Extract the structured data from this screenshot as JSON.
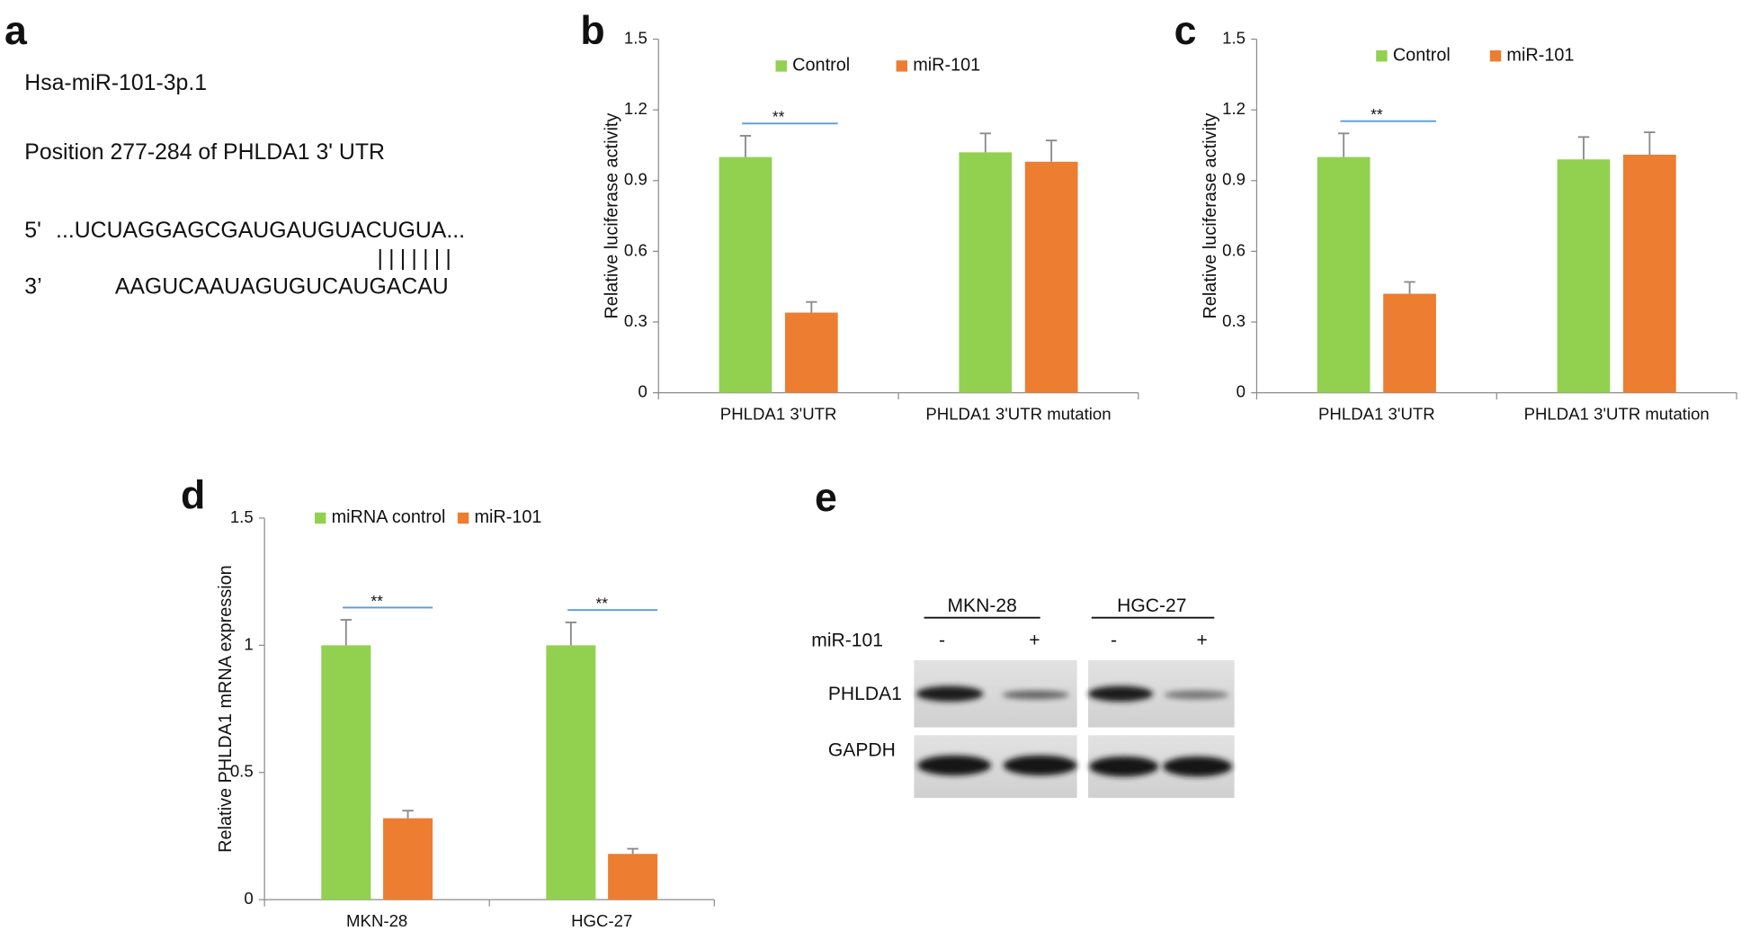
{
  "panel_a": {
    "label": "a",
    "lines": [
      "Hsa-miR-101-3p.1",
      "Position 277-284 of PHLDA1 3' UTR"
    ],
    "mrna": {
      "end": "5'",
      "sequence": "...UCUAGGAGCGAUGAUGUACUGUA..."
    },
    "pairing": "|||||||",
    "mirna": {
      "end": "3’",
      "sequence": "AAGUCAAUAGUGUCAUGACAU"
    }
  },
  "chart_data": [
    {
      "type": "bar",
      "panel_label": "b",
      "ylabel": "Relative luciferase activity",
      "categories": [
        "PHLDA1 3'UTR",
        "PHLDA1 3'UTR mutation"
      ],
      "series": [
        {
          "name": "Control",
          "color": "#92d050",
          "values": [
            1.0,
            1.02
          ],
          "errors": [
            0.09,
            0.08
          ]
        },
        {
          "name": "miR-101",
          "color": "#ed7d31",
          "values": [
            0.34,
            0.98
          ],
          "errors": [
            0.045,
            0.09
          ]
        }
      ],
      "ylim": [
        0,
        1.5
      ],
      "yticks": [
        0,
        0.3,
        0.6,
        0.9,
        1.2,
        1.5
      ],
      "legend": "top",
      "significance": [
        "**",
        null
      ],
      "error_color": "#8c8c8c",
      "significance_color": "#5b9bd5"
    },
    {
      "type": "bar",
      "panel_label": "c",
      "ylabel": "Relative luciferase activity",
      "categories": [
        "PHLDA1 3'UTR",
        "PHLDA1 3'UTR mutation"
      ],
      "series": [
        {
          "name": "Control",
          "color": "#92d050",
          "values": [
            1.0,
            0.99
          ],
          "errors": [
            0.1,
            0.095
          ]
        },
        {
          "name": "miR-101",
          "color": "#ed7d31",
          "values": [
            0.42,
            1.01
          ],
          "errors": [
            0.05,
            0.095
          ]
        }
      ],
      "ylim": [
        0,
        1.5
      ],
      "yticks": [
        0,
        0.3,
        0.6,
        0.9,
        1.2,
        1.5
      ],
      "legend": "top",
      "significance": [
        "**",
        null
      ],
      "error_color": "#8c8c8c",
      "significance_color": "#5b9bd5"
    },
    {
      "type": "bar",
      "panel_label": "d",
      "ylabel": "Relative PHLDA1 mRNA expression",
      "categories": [
        "MKN-28",
        "HGC-27"
      ],
      "series": [
        {
          "name": "miRNA control",
          "color": "#92d050",
          "values": [
            1.0,
            1.0
          ],
          "errors": [
            0.1,
            0.09
          ]
        },
        {
          "name": "miR-101",
          "color": "#ed7d31",
          "values": [
            0.32,
            0.18
          ],
          "errors": [
            0.03,
            0.02
          ]
        }
      ],
      "ylim": [
        0,
        1.5
      ],
      "yticks": [
        0,
        0.5,
        1,
        1.5
      ],
      "legend": "top",
      "significance": [
        "**",
        "**"
      ],
      "error_color": "#8c8c8c",
      "significance_color": "#5b9bd5"
    }
  ],
  "panel_e": {
    "label": "e",
    "cell_lines": [
      "MKN-28",
      "HGC-27"
    ],
    "treatment": "miR-101",
    "treatment_states": [
      "-",
      "+",
      "-",
      "+"
    ],
    "rows": [
      "PHLDA1",
      "GAPDH"
    ]
  }
}
